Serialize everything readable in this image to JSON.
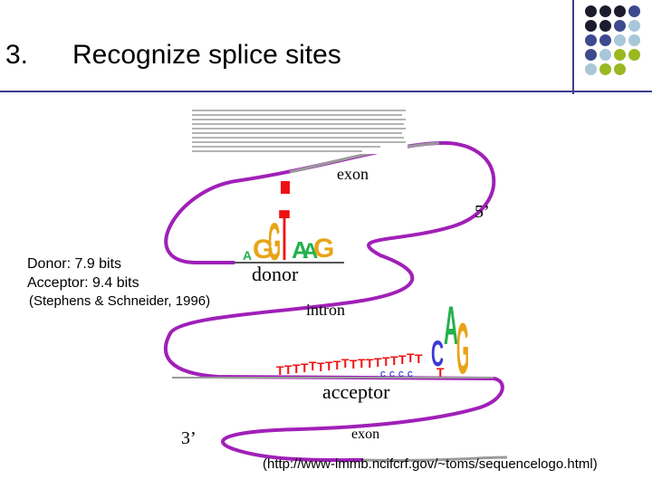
{
  "slide": {
    "number": "3.",
    "title": "Recognize splice sites"
  },
  "theme": {
    "accent_line": "#3d3d8f",
    "loop_color": "#a020b8",
    "dot_colors": [
      "#1c1c2e",
      "#3d4a8f",
      "#a8c7d8",
      "#9ab820"
    ]
  },
  "captions": {
    "donor_bits": "Donor: 7.9 bits",
    "acceptor_bits": "Acceptor: 9.4 bits",
    "citation": "(Stephens & Schneider, 1996)",
    "source_url": "(http://www-lmmb.ncifcrf.gov/~toms/sequencelogo.html)"
  },
  "diagram": {
    "labels": {
      "exon_top": "exon",
      "five_prime": "5’",
      "donor": "donor",
      "intron": "intron",
      "acceptor": "acceptor",
      "three_prime": "3’",
      "exon_bottom": "exon"
    },
    "donor_logo": [
      "A",
      "G",
      "G",
      "T",
      "A",
      "A",
      "G"
    ],
    "acceptor_logo": [
      "C",
      "A",
      "G",
      "T"
    ]
  }
}
